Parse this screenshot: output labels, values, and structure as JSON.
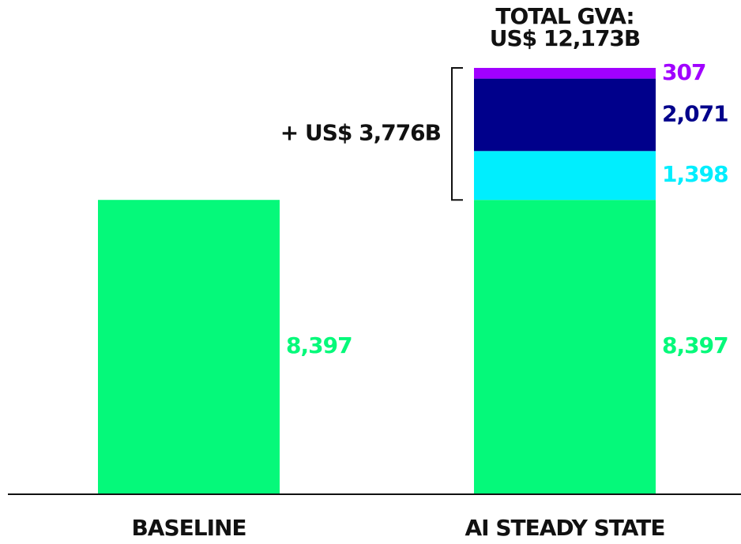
{
  "chart_data": {
    "type": "stacked_bar",
    "categories": [
      "BASELINE",
      "AI STEADY STATE"
    ],
    "series": [
      {
        "color": "#05f97a",
        "values": [
          8397,
          8397
        ],
        "value_labels": [
          "8,397",
          "8,397"
        ]
      },
      {
        "color": "#00eefe",
        "values": [
          null,
          1398
        ],
        "value_labels": [
          null,
          "1,398"
        ]
      },
      {
        "color": "#00008b",
        "values": [
          null,
          2071
        ],
        "value_labels": [
          null,
          "2,071"
        ]
      },
      {
        "color": "#a100ff",
        "values": [
          null,
          307
        ],
        "value_labels": [
          null,
          "307"
        ]
      }
    ],
    "total_label": [
      "TOTAL GVA:",
      "US$ 12,173B"
    ],
    "increase_label": "+ US$ 3,776B"
  }
}
